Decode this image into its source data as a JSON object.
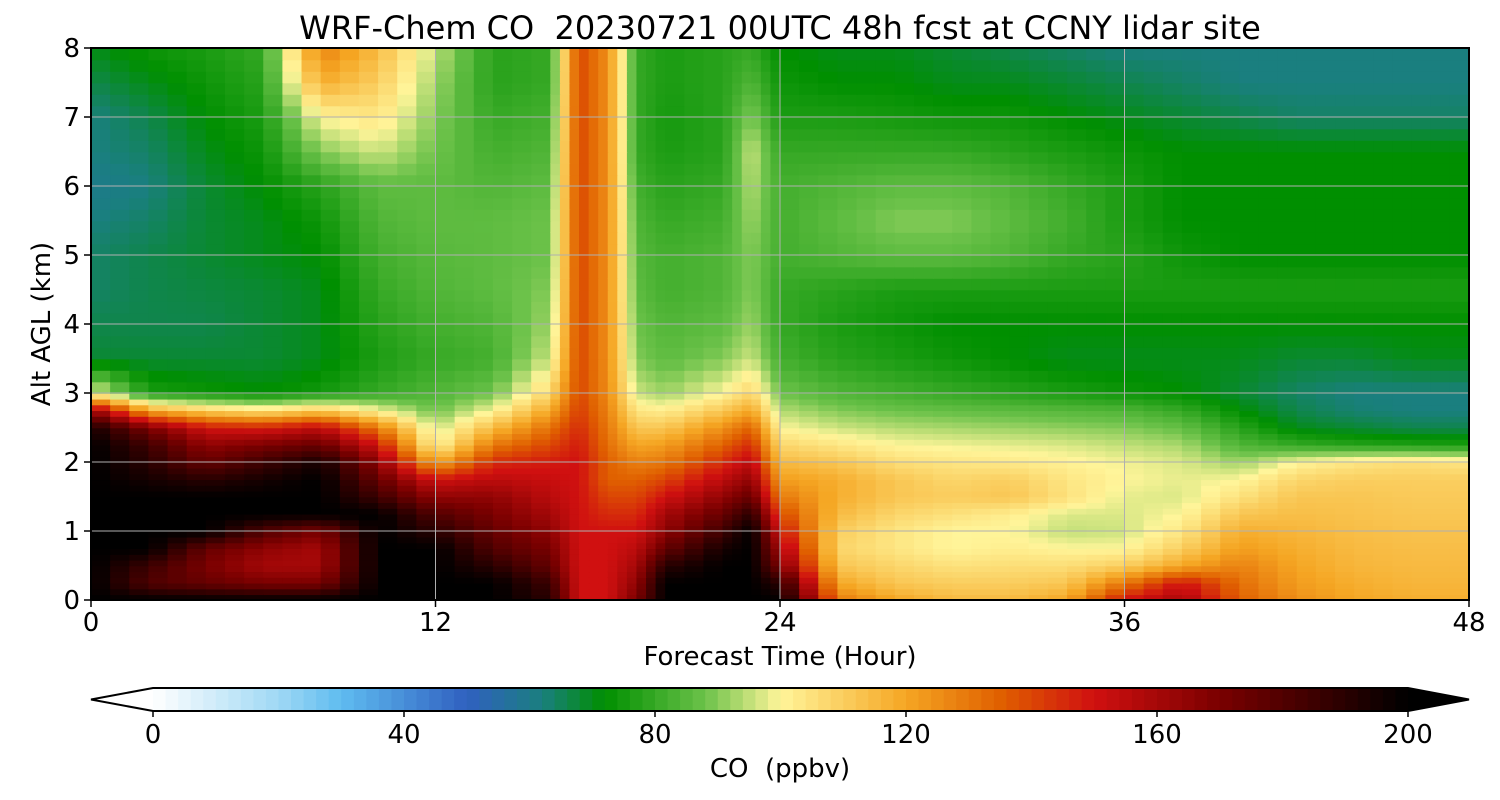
{
  "chart_data": {
    "type": "heatmap",
    "title": "WRF-Chem CO  20230721 00UTC 48h fcst at CCNY lidar site",
    "xlabel": "Forecast Time (Hour)",
    "ylabel": "Alt AGL (km)",
    "xlim": [
      0,
      48
    ],
    "ylim": [
      0,
      8
    ],
    "xticks": [
      0,
      12,
      24,
      36,
      48
    ],
    "yticks": [
      0,
      1,
      2,
      3,
      4,
      5,
      6,
      7,
      8
    ],
    "grid": true,
    "colorbar": {
      "label": "CO  (ppbv)",
      "range": [
        0,
        200
      ],
      "ticks": [
        0,
        40,
        80,
        120,
        160,
        200
      ],
      "extend": "both",
      "stops": [
        {
          "v": 0,
          "color": "#ffffff"
        },
        {
          "v": 20,
          "color": "#9fd8f4"
        },
        {
          "v": 30,
          "color": "#5fbcf0"
        },
        {
          "v": 50,
          "color": "#3060c0"
        },
        {
          "v": 62,
          "color": "#1a7f7f"
        },
        {
          "v": 72,
          "color": "#008f00"
        },
        {
          "v": 88,
          "color": "#6cc24a"
        },
        {
          "v": 100,
          "color": "#fff59a"
        },
        {
          "v": 120,
          "color": "#f5a623"
        },
        {
          "v": 135,
          "color": "#e06000"
        },
        {
          "v": 150,
          "color": "#d01010"
        },
        {
          "v": 170,
          "color": "#7a0000"
        },
        {
          "v": 200,
          "color": "#000000"
        }
      ]
    },
    "x": [
      0,
      2,
      4,
      6,
      8,
      10,
      12,
      14,
      16,
      17,
      18,
      19,
      20,
      22,
      23,
      24,
      26,
      28,
      30,
      32,
      34,
      36,
      38,
      40,
      42,
      44,
      46,
      48
    ],
    "y": [
      0,
      0.25,
      0.5,
      0.75,
      1,
      1.25,
      1.5,
      1.75,
      2,
      2.25,
      2.5,
      2.75,
      3,
      3.5,
      4,
      4.5,
      5,
      5.5,
      6,
      6.5,
      7,
      7.5,
      8
    ],
    "z": [
      [
        200,
        200,
        200,
        200,
        200,
        200,
        200,
        200,
        190,
        150,
        150,
        170,
        200,
        200,
        200,
        200,
        130,
        120,
        115,
        115,
        120,
        150,
        160,
        135,
        125,
        120,
        118,
        118
      ],
      [
        200,
        180,
        175,
        170,
        170,
        200,
        200,
        200,
        185,
        150,
        150,
        165,
        200,
        200,
        200,
        190,
        120,
        112,
        110,
        110,
        112,
        130,
        150,
        132,
        122,
        118,
        116,
        116
      ],
      [
        200,
        185,
        170,
        160,
        160,
        200,
        200,
        190,
        175,
        150,
        150,
        160,
        190,
        200,
        200,
        170,
        112,
        108,
        105,
        106,
        106,
        110,
        120,
        128,
        120,
        116,
        115,
        115
      ],
      [
        200,
        200,
        175,
        165,
        160,
        200,
        200,
        180,
        170,
        150,
        150,
        155,
        175,
        195,
        200,
        160,
        108,
        104,
        100,
        102,
        100,
        100,
        110,
        122,
        118,
        115,
        114,
        114
      ],
      [
        200,
        200,
        200,
        180,
        170,
        200,
        190,
        175,
        165,
        150,
        150,
        150,
        165,
        185,
        200,
        150,
        110,
        104,
        100,
        100,
        95,
        96,
        104,
        118,
        116,
        114,
        113,
        113
      ],
      [
        200,
        200,
        200,
        200,
        200,
        200,
        180,
        170,
        160,
        150,
        145,
        145,
        160,
        175,
        190,
        140,
        115,
        108,
        105,
        102,
        97,
        97,
        100,
        112,
        114,
        113,
        112,
        112
      ],
      [
        200,
        200,
        200,
        200,
        200,
        185,
        165,
        165,
        155,
        150,
        140,
        140,
        150,
        165,
        175,
        130,
        118,
        112,
        110,
        112,
        105,
        98,
        97,
        105,
        112,
        112,
        111,
        111
      ],
      [
        200,
        195,
        190,
        195,
        200,
        175,
        150,
        155,
        152,
        150,
        135,
        135,
        140,
        155,
        165,
        122,
        118,
        112,
        108,
        110,
        104,
        100,
        98,
        100,
        108,
        110,
        110,
        110
      ],
      [
        200,
        190,
        175,
        185,
        195,
        165,
        120,
        145,
        148,
        150,
        135,
        128,
        130,
        145,
        155,
        115,
        112,
        106,
        104,
        103,
        101,
        99,
        97,
        92,
        100,
        104,
        106,
        104
      ],
      [
        200,
        185,
        165,
        170,
        175,
        150,
        100,
        130,
        140,
        148,
        132,
        120,
        122,
        135,
        145,
        108,
        104,
        100,
        99,
        98,
        97,
        95,
        93,
        84,
        80,
        78,
        77,
        76
      ],
      [
        195,
        170,
        150,
        148,
        155,
        130,
        95,
        115,
        132,
        145,
        130,
        112,
        112,
        125,
        135,
        100,
        96,
        94,
        93,
        92,
        91,
        90,
        87,
        78,
        70,
        68,
        66,
        66
      ],
      [
        165,
        120,
        110,
        105,
        112,
        100,
        88,
        100,
        120,
        142,
        128,
        104,
        102,
        112,
        120,
        94,
        90,
        88,
        87,
        86,
        85,
        84,
        80,
        72,
        66,
        63,
        62,
        62
      ],
      [
        100,
        76,
        74,
        72,
        75,
        80,
        84,
        88,
        108,
        140,
        126,
        96,
        92,
        100,
        108,
        88,
        84,
        82,
        80,
        78,
        76,
        74,
        72,
        68,
        64,
        62,
        62,
        62
      ],
      [
        68,
        68,
        68,
        68,
        70,
        76,
        80,
        82,
        96,
        140,
        125,
        90,
        86,
        90,
        96,
        82,
        78,
        76,
        74,
        72,
        70,
        70,
        70,
        70,
        68,
        68,
        70,
        70
      ],
      [
        66,
        66,
        66,
        68,
        70,
        78,
        82,
        84,
        92,
        140,
        125,
        88,
        84,
        86,
        92,
        80,
        76,
        74,
        72,
        72,
        72,
        72,
        72,
        72,
        72,
        72,
        72,
        72
      ],
      [
        64,
        66,
        67,
        68,
        70,
        80,
        84,
        86,
        90,
        140,
        125,
        86,
        82,
        84,
        90,
        80,
        78,
        76,
        76,
        76,
        76,
        76,
        76,
        76,
        76,
        76,
        76,
        76
      ],
      [
        64,
        66,
        68,
        70,
        72,
        82,
        85,
        86,
        88,
        140,
        125,
        85,
        82,
        84,
        90,
        82,
        84,
        86,
        86,
        84,
        80,
        78,
        74,
        72,
        72,
        72,
        72,
        72
      ],
      [
        62,
        64,
        68,
        70,
        74,
        84,
        86,
        86,
        88,
        140,
        125,
        84,
        80,
        82,
        92,
        82,
        86,
        90,
        90,
        86,
        82,
        76,
        72,
        72,
        72,
        72,
        72,
        72
      ],
      [
        60,
        62,
        68,
        72,
        78,
        86,
        86,
        84,
        86,
        140,
        125,
        82,
        78,
        80,
        94,
        82,
        84,
        86,
        86,
        84,
        80,
        76,
        72,
        72,
        72,
        72,
        72,
        72
      ],
      [
        62,
        64,
        70,
        74,
        90,
        96,
        88,
        82,
        84,
        140,
        125,
        80,
        76,
        78,
        96,
        80,
        80,
        80,
        80,
        78,
        76,
        74,
        72,
        72,
        72,
        72,
        72,
        72
      ],
      [
        62,
        66,
        72,
        76,
        100,
        104,
        90,
        80,
        82,
        140,
        125,
        80,
        75,
        78,
        90,
        76,
        76,
        75,
        74,
        74,
        72,
        70,
        68,
        66,
        64,
        64,
        64,
        64
      ],
      [
        66,
        70,
        74,
        78,
        118,
        110,
        92,
        78,
        80,
        140,
        125,
        80,
        76,
        78,
        84,
        74,
        72,
        72,
        70,
        70,
        68,
        66,
        64,
        62,
        62,
        62,
        62,
        62
      ],
      [
        70,
        74,
        76,
        80,
        128,
        115,
        95,
        78,
        80,
        140,
        125,
        80,
        76,
        78,
        80,
        72,
        70,
        70,
        68,
        66,
        64,
        62,
        62,
        62,
        62,
        62,
        62,
        62
      ]
    ]
  }
}
